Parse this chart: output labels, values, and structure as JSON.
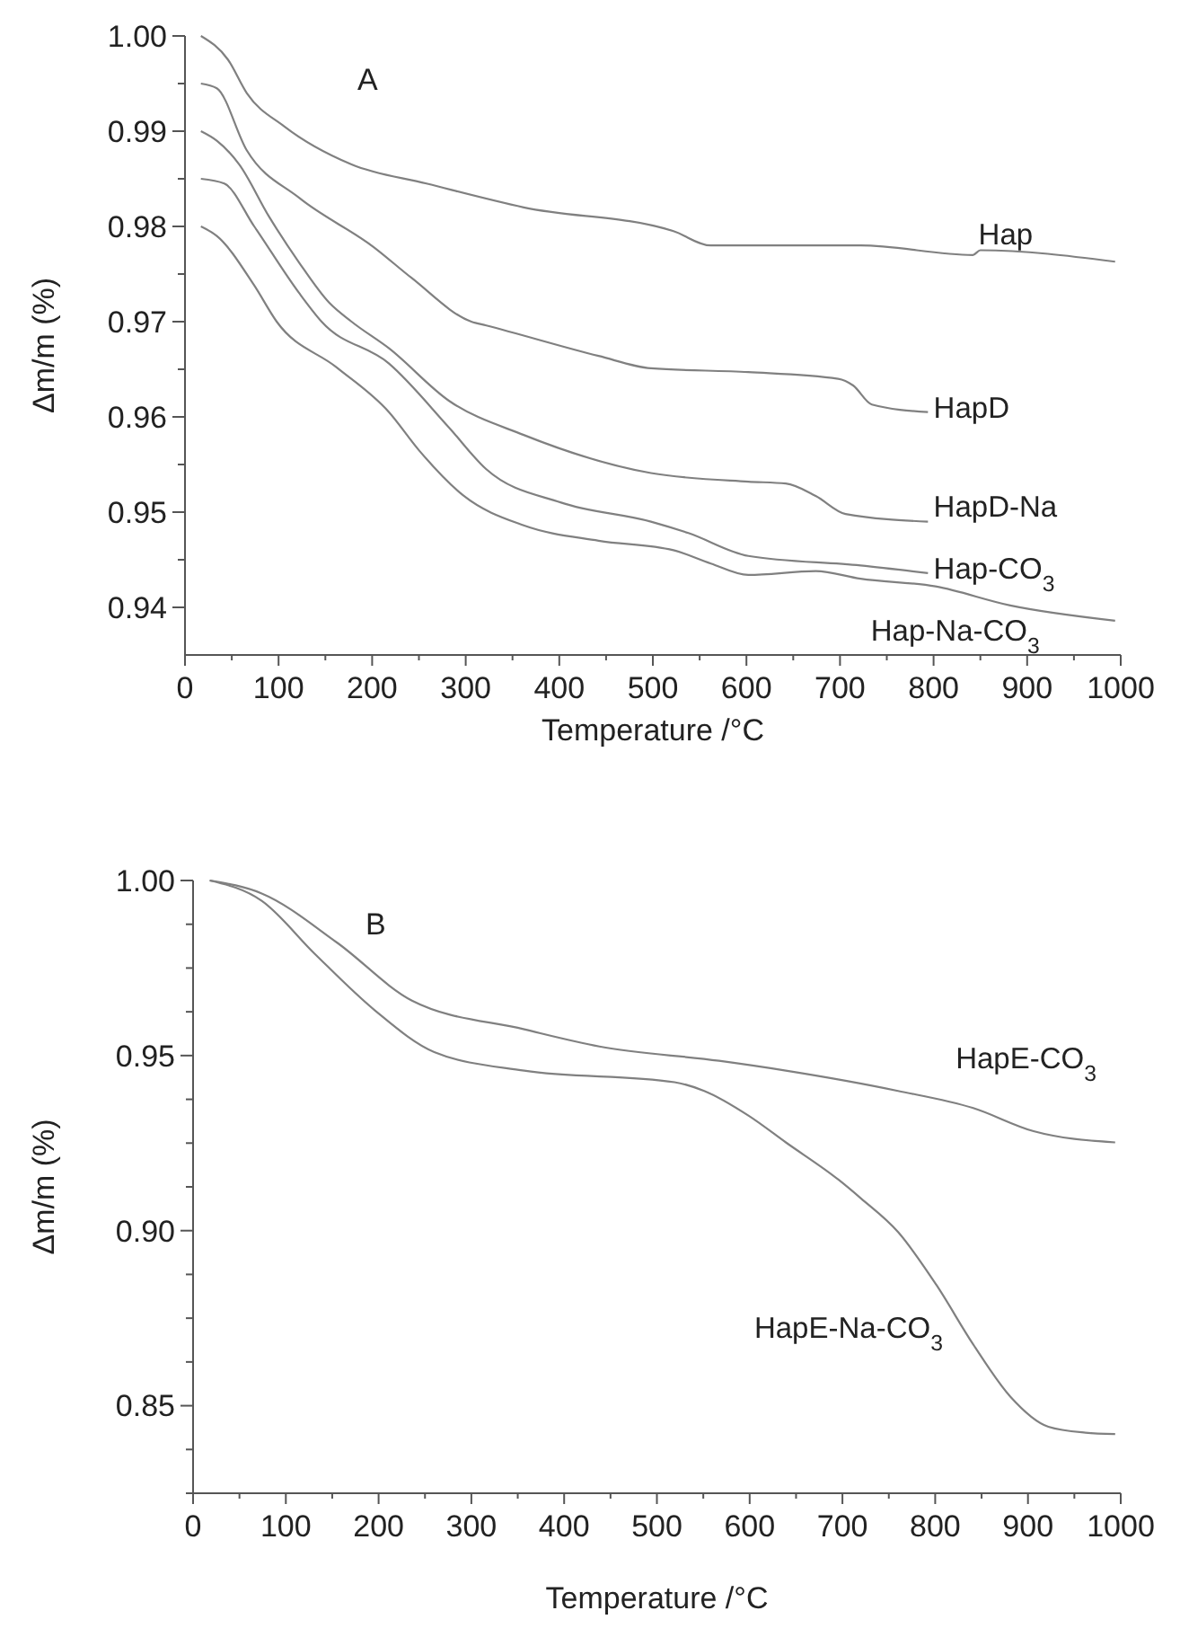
{
  "chart_data": [
    {
      "type": "line",
      "title": "A",
      "xlabel": "Temperature /°C",
      "ylabel": "Δm/m (%)",
      "xlim": [
        0,
        1000
      ],
      "ylim": [
        0.935,
        1.0
      ],
      "xticks": [
        0,
        {
          "value": 50,
          "label": null
        },
        100,
        {
          "value": 150,
          "label": null
        },
        200,
        {
          "value": 250,
          "label": null
        },
        300,
        {
          "value": 350,
          "label": null
        },
        400,
        {
          "value": 450,
          "label": null
        },
        500,
        {
          "value": 550,
          "label": null
        },
        600,
        {
          "value": 650,
          "label": null
        },
        700,
        {
          "value": 750,
          "label": null
        },
        800,
        {
          "value": 850,
          "label": null
        },
        900,
        {
          "value": 950,
          "label": null
        },
        1000
      ],
      "yticks": [
        {
          "value": 0.94,
          "label": "0.94"
        },
        {
          "value": 0.945,
          "label": null
        },
        {
          "value": 0.95,
          "label": "0.95"
        },
        {
          "value": 0.955,
          "label": null
        },
        {
          "value": 0.96,
          "label": "0.96"
        },
        {
          "value": 0.965,
          "label": null
        },
        {
          "value": 0.97,
          "label": "0.97"
        },
        {
          "value": 0.975,
          "label": null
        },
        {
          "value": 0.98,
          "label": "0.98"
        },
        {
          "value": 0.985,
          "label": null
        },
        {
          "value": 0.99,
          "label": "0.99"
        },
        {
          "value": 0.995,
          "label": null
        },
        {
          "value": 1.0,
          "label": "1.00"
        }
      ],
      "grid": false,
      "marker": "none",
      "line_style": "solid",
      "series": [
        {
          "name": "Hap",
          "color": "#808080",
          "x": [
            17,
            46,
            66,
            106,
            178,
            258,
            362,
            522,
            562,
            722,
            842,
            850,
            994
          ],
          "values": [
            1.0,
            0.9975,
            0.994,
            0.9905,
            0.9865,
            0.9845,
            0.982,
            0.9795,
            0.978,
            0.978,
            0.977,
            0.9775,
            0.9763
          ]
        },
        {
          "name": "HapD",
          "color": "#808080",
          "x": [
            17,
            34,
            66,
            122,
            202,
            242,
            306,
            322,
            442,
            498,
            602,
            698,
            714,
            734,
            794
          ],
          "values": [
            0.995,
            0.9945,
            0.988,
            0.983,
            0.9778,
            0.9746,
            0.97,
            0.9696,
            0.9664,
            0.9651,
            0.9647,
            0.964,
            0.9633,
            0.9613,
            0.9605
          ]
        },
        {
          "name": "HapD-Na",
          "color": "#808080",
          "x": [
            17,
            34,
            58,
            90,
            122,
            154,
            178,
            218,
            282,
            362,
            498,
            602,
            642,
            674,
            706,
            794
          ],
          "values": [
            0.99,
            0.989,
            0.9865,
            0.981,
            0.9762,
            0.972,
            0.97,
            0.9672,
            0.9617,
            0.9581,
            0.9541,
            0.9532,
            0.953,
            0.9517,
            0.9498,
            0.949
          ]
        },
        {
          "name": "Hap-CO$_{3}$",
          "color": "#808080",
          "x": [
            17,
            42,
            74,
            122,
            146,
            218,
            282,
            322,
            402,
            498,
            538,
            602,
            722,
            794
          ],
          "values": [
            0.985,
            0.9845,
            0.98,
            0.973,
            0.97,
            0.9656,
            0.9589,
            0.9545,
            0.951,
            0.949,
            0.9478,
            0.9454,
            0.9444,
            0.9436
          ]
        },
        {
          "name": "Hap-Na-CO$_{3}$",
          "color": "#808080",
          "x": [
            17,
            34,
            74,
            98,
            162,
            218,
            250,
            298,
            362,
            442,
            522,
            562,
            602,
            674,
            722,
            802,
            882,
            994
          ],
          "values": [
            0.98,
            0.979,
            0.9738,
            0.97,
            0.9652,
            0.9605,
            0.9565,
            0.9517,
            0.9486,
            0.947,
            0.946,
            0.9446,
            0.9434,
            0.9438,
            0.943,
            0.9422,
            0.9402,
            0.9386
          ]
        }
      ]
    },
    {
      "type": "line",
      "title": "B",
      "xlabel": "Temperature /°C",
      "ylabel": "Δm/m (%)",
      "xlim": [
        0,
        1000
      ],
      "ylim": [
        0.825,
        1.0
      ],
      "xticks": [
        0,
        {
          "value": 50,
          "label": null
        },
        100,
        {
          "value": 150,
          "label": null
        },
        200,
        {
          "value": 250,
          "label": null
        },
        300,
        {
          "value": 350,
          "label": null
        },
        400,
        {
          "value": 450,
          "label": null
        },
        500,
        {
          "value": 550,
          "label": null
        },
        600,
        {
          "value": 650,
          "label": null
        },
        700,
        {
          "value": 750,
          "label": null
        },
        800,
        {
          "value": 850,
          "label": null
        },
        900,
        {
          "value": 950,
          "label": null
        },
        1000
      ],
      "yticks": [
        {
          "value": 0.825,
          "label": null
        },
        {
          "value": 0.8375,
          "label": null
        },
        {
          "value": 0.85,
          "label": "0.85"
        },
        {
          "value": 0.8625,
          "label": null
        },
        {
          "value": 0.875,
          "label": null
        },
        {
          "value": 0.8875,
          "label": null
        },
        {
          "value": 0.9,
          "label": "0.90"
        },
        {
          "value": 0.9125,
          "label": null
        },
        {
          "value": 0.925,
          "label": null
        },
        {
          "value": 0.9375,
          "label": null
        },
        {
          "value": 0.95,
          "label": "0.95"
        },
        {
          "value": 0.9625,
          "label": null
        },
        {
          "value": 0.975,
          "label": null
        },
        {
          "value": 0.9875,
          "label": null
        },
        {
          "value": 1.0,
          "label": "1.00"
        }
      ],
      "grid": false,
      "marker": "none",
      "line_style": "solid",
      "series": [
        {
          "name": "HapE-CO$_{3}$",
          "color": "#808080",
          "x": [
            18,
            74,
            155,
            236,
            357,
            438,
            567,
            639,
            760,
            841,
            906,
            994
          ],
          "values": [
            1.0,
            0.9963,
            0.9823,
            0.9657,
            0.9575,
            0.9526,
            0.9485,
            0.9457,
            0.9399,
            0.935,
            0.9284,
            0.9252
          ]
        },
        {
          "name": "HapE-Na-CO$_{3}$",
          "color": "#808080",
          "x": [
            18,
            74,
            131,
            196,
            260,
            357,
            519,
            551,
            599,
            639,
            696,
            720,
            760,
            801,
            841,
            881,
            922,
            962,
            994
          ],
          "values": [
            1.0,
            0.9942,
            0.9791,
            0.9629,
            0.951,
            0.9457,
            0.9424,
            0.9399,
            0.9328,
            0.9252,
            0.9145,
            0.9092,
            0.8996,
            0.8846,
            0.8675,
            0.8526,
            0.844,
            0.8423,
            0.8419
          ]
        }
      ]
    }
  ]
}
